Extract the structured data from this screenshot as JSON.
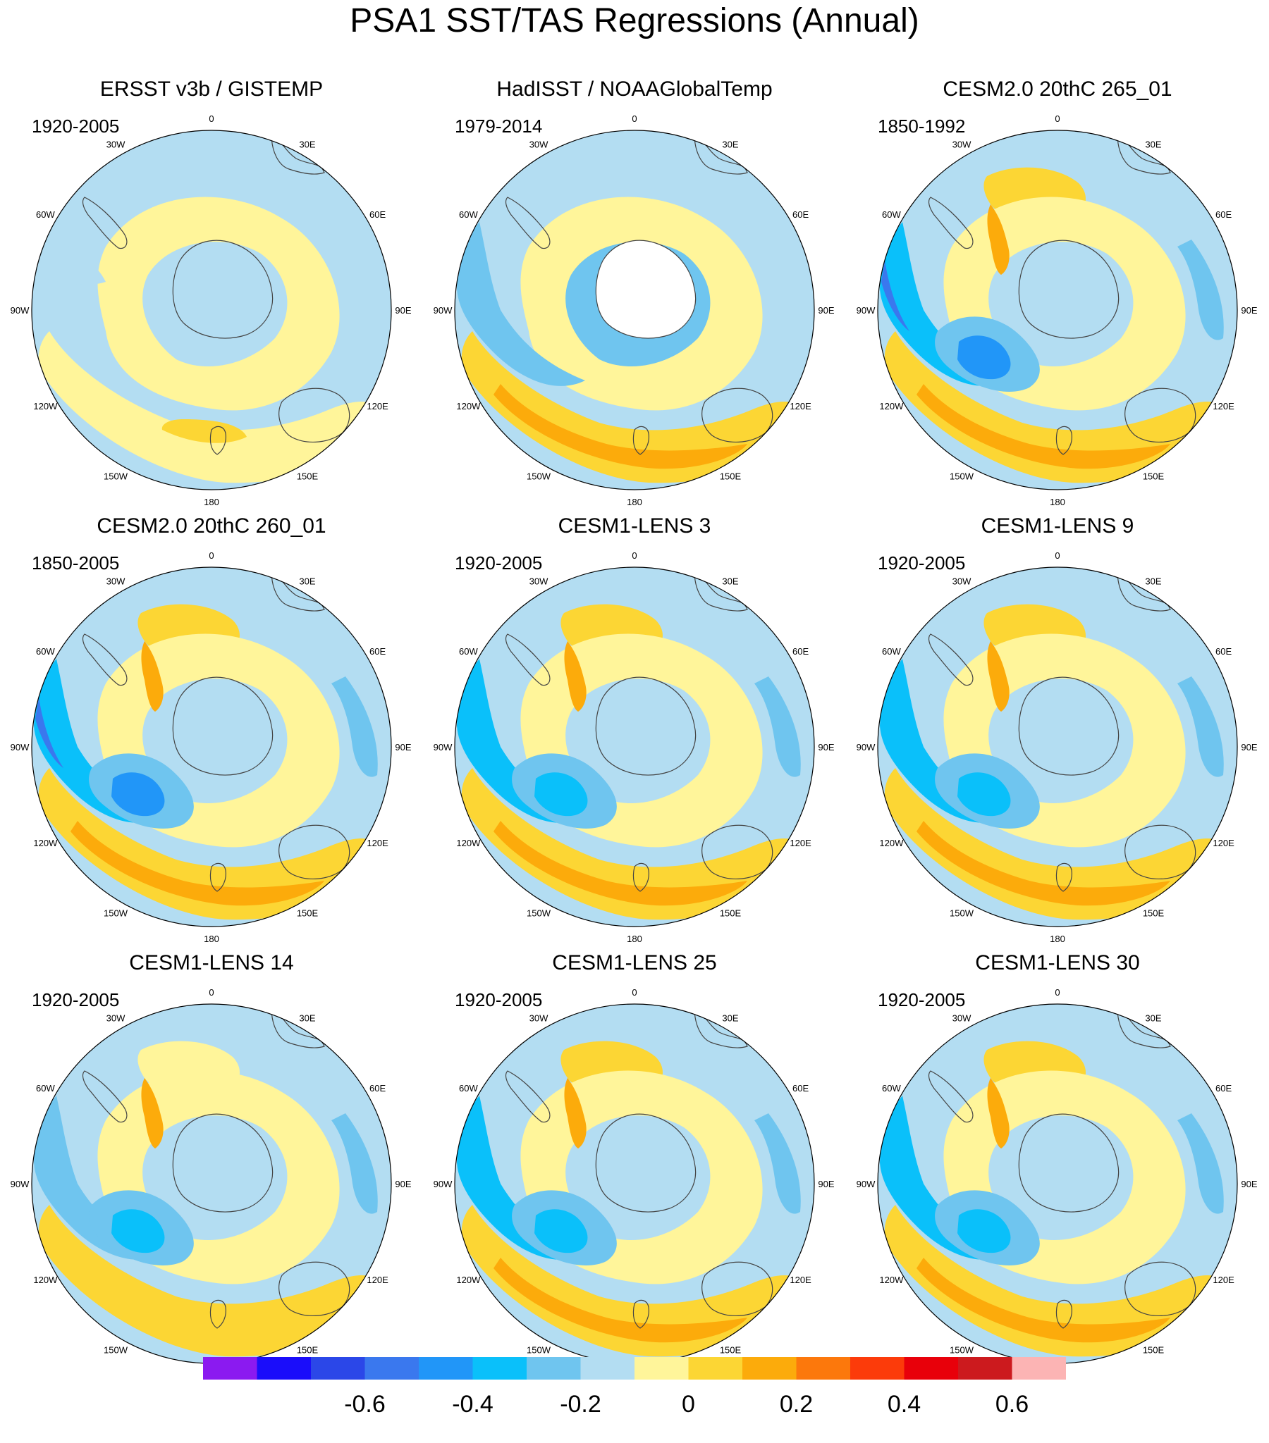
{
  "title": "PSA1 SST/TAS Regressions (Annual)",
  "lon_labels": [
    "0",
    "30E",
    "60E",
    "90E",
    "120E",
    "150E",
    "180",
    "150W",
    "120W",
    "90W",
    "60W",
    "30W"
  ],
  "panels": [
    {
      "title": "ERSST v3b / GISTEMP",
      "years": "1920-2005",
      "pattern": "obs1"
    },
    {
      "title": "HadISST / NOAAGlobalTemp",
      "years": "1979-2014",
      "pattern": "obs2"
    },
    {
      "title": "CESM2.0 20thC 265_01",
      "years": "1850-1992",
      "pattern": "strong"
    },
    {
      "title": "CESM2.0 20thC 260_01",
      "years": "1850-2005",
      "pattern": "strong"
    },
    {
      "title": "CESM1-LENS 3",
      "years": "1920-2005",
      "pattern": "mid"
    },
    {
      "title": "CESM1-LENS 9",
      "years": "1920-2005",
      "pattern": "mid"
    },
    {
      "title": "CESM1-LENS 14",
      "years": "1920-2005",
      "pattern": "weak"
    },
    {
      "title": "CESM1-LENS 25",
      "years": "1920-2005",
      "pattern": "mid"
    },
    {
      "title": "CESM1-LENS 30",
      "years": "1920-2005",
      "pattern": "mid"
    }
  ],
  "colorbar": {
    "colors": [
      "#8B1AF0",
      "#1A0DFA",
      "#2B47E8",
      "#3A78EE",
      "#2196F8",
      "#0AC0FA",
      "#6FC5EF",
      "#B3DDF2",
      "#FFF59A",
      "#FCD634",
      "#FCAB0B",
      "#FC780C",
      "#FC3B0A",
      "#E8000A",
      "#CC1A1E",
      "#FCB4B4"
    ],
    "ticks": [
      "-0.6",
      "-0.4",
      "-0.2",
      "0",
      "0.2",
      "0.4",
      "0.6"
    ]
  }
}
